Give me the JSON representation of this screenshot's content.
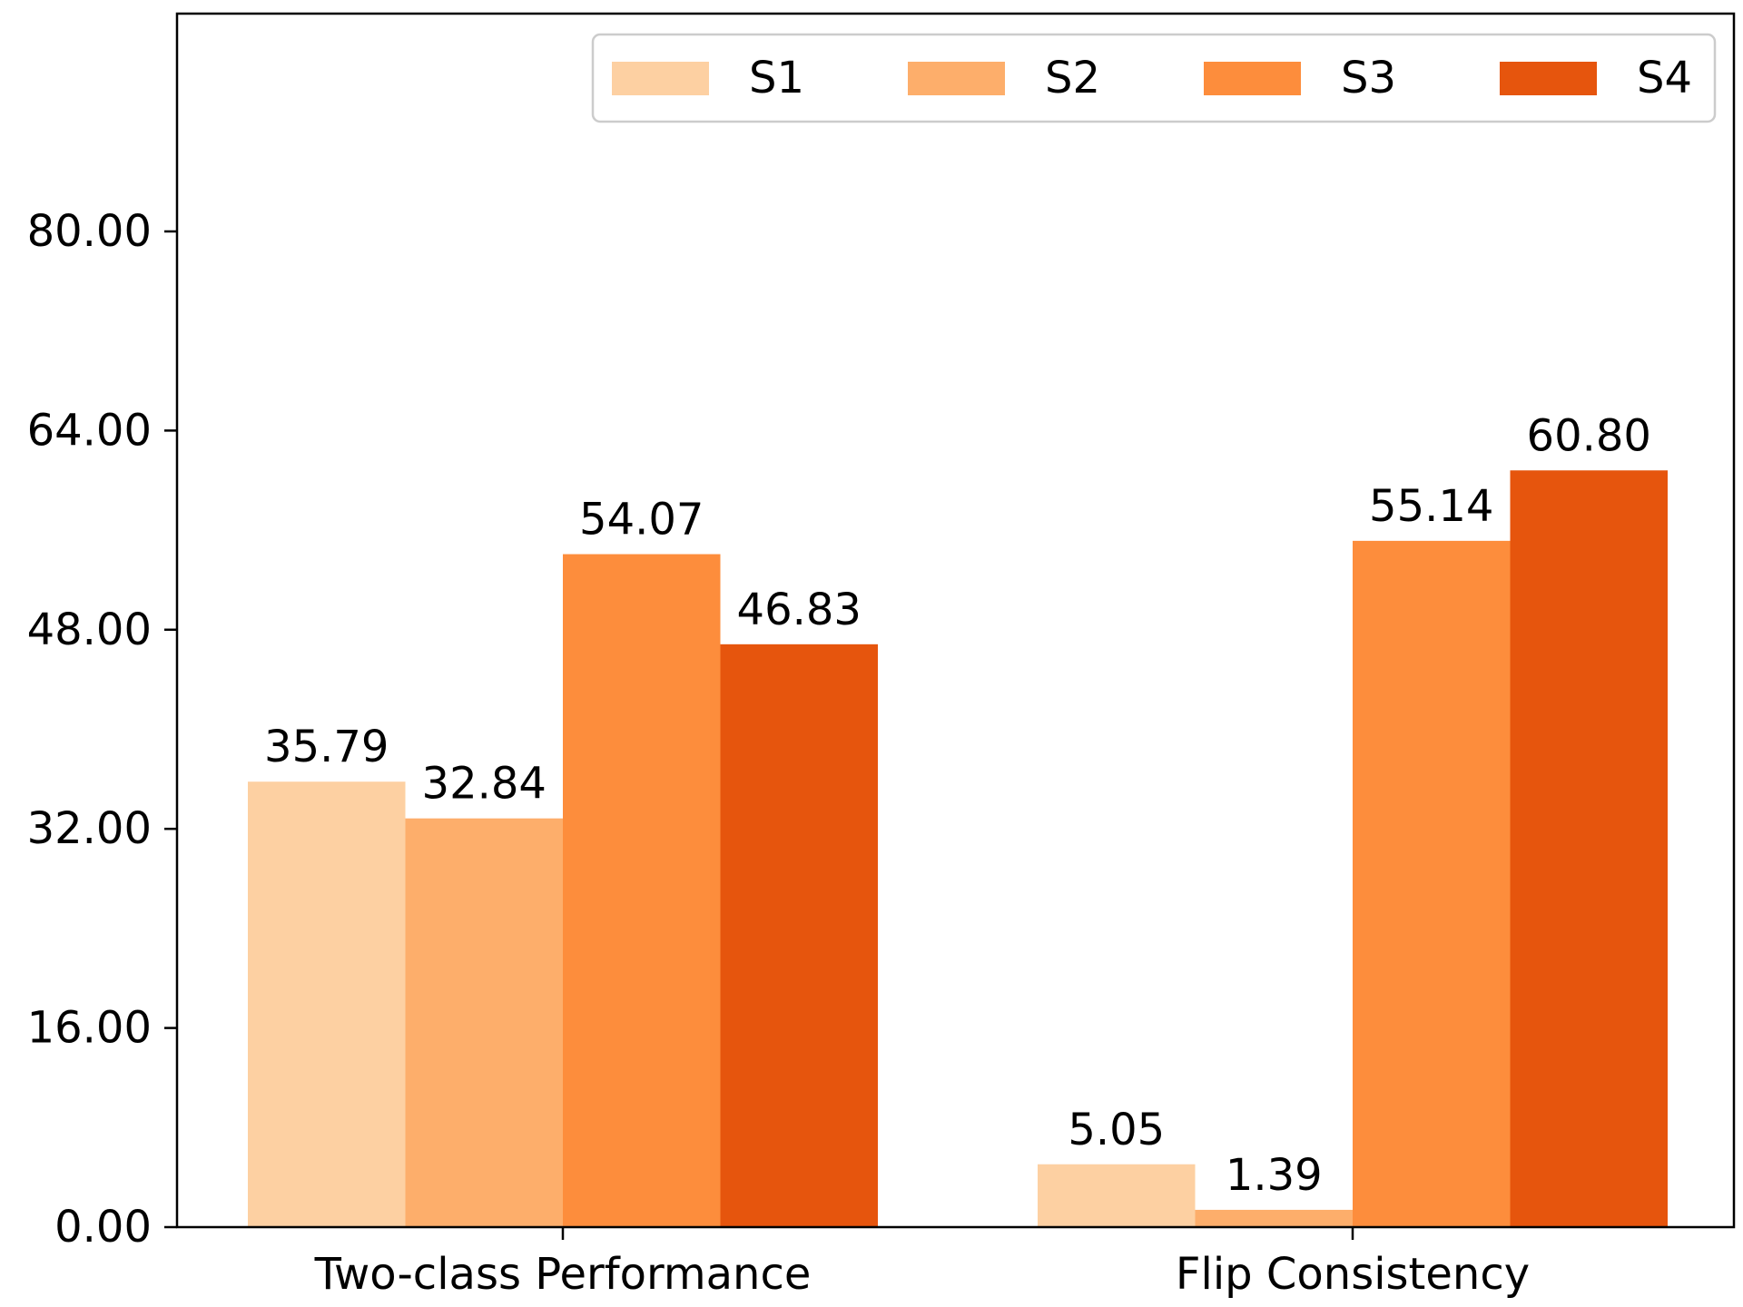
{
  "chart_data": {
    "type": "bar",
    "categories": [
      "Two-class Performance",
      "Flip Consistency"
    ],
    "series": [
      {
        "name": "S1",
        "values": [
          35.79,
          5.05
        ],
        "color": "#fdd0a2"
      },
      {
        "name": "S2",
        "values": [
          32.84,
          1.39
        ],
        "color": "#fdae6b"
      },
      {
        "name": "S3",
        "values": [
          54.07,
          55.14
        ],
        "color": "#fd8d3c"
      },
      {
        "name": "S4",
        "values": [
          46.83,
          60.8
        ],
        "color": "#e6550d"
      }
    ],
    "value_labels": [
      [
        "35.79",
        "5.05"
      ],
      [
        "32.84",
        "1.39"
      ],
      [
        "54.07",
        "55.14"
      ],
      [
        "46.83",
        "60.80"
      ]
    ],
    "yticks": [
      0,
      16,
      32,
      48,
      64,
      80
    ],
    "ytick_labels": [
      "0.00",
      "16.00",
      "32.00",
      "48.00",
      "64.00",
      "80.00"
    ],
    "ylim": [
      0,
      97.5
    ],
    "title": "",
    "xlabel": "",
    "ylabel": "",
    "grid": false,
    "legend": {
      "position": "top-right",
      "columns": 4
    }
  }
}
